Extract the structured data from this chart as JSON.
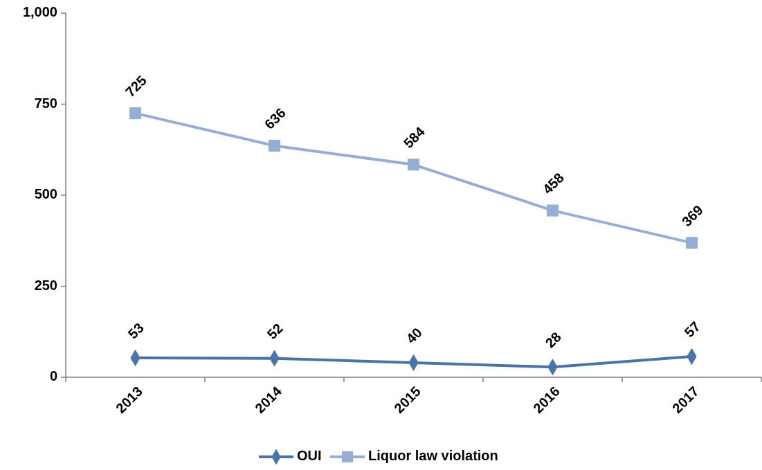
{
  "chart_data": {
    "type": "line",
    "categories": [
      "2013",
      "2014",
      "2015",
      "2016",
      "2017"
    ],
    "series": [
      {
        "name": "OUI",
        "color": "#4a74a9",
        "values": [
          53,
          52,
          40,
          28,
          57
        ],
        "marker": "diamond"
      },
      {
        "name": "Liquor law violation",
        "color": "#94aed6",
        "values": [
          725,
          636,
          584,
          458,
          369
        ],
        "marker": "square"
      }
    ],
    "ylim": [
      0,
      1000
    ],
    "yticks": [
      0,
      250,
      500,
      750,
      {
        "value": 1000,
        "label": "1,000"
      }
    ],
    "data_labels": true,
    "legend": "bottom",
    "grid": false
  }
}
